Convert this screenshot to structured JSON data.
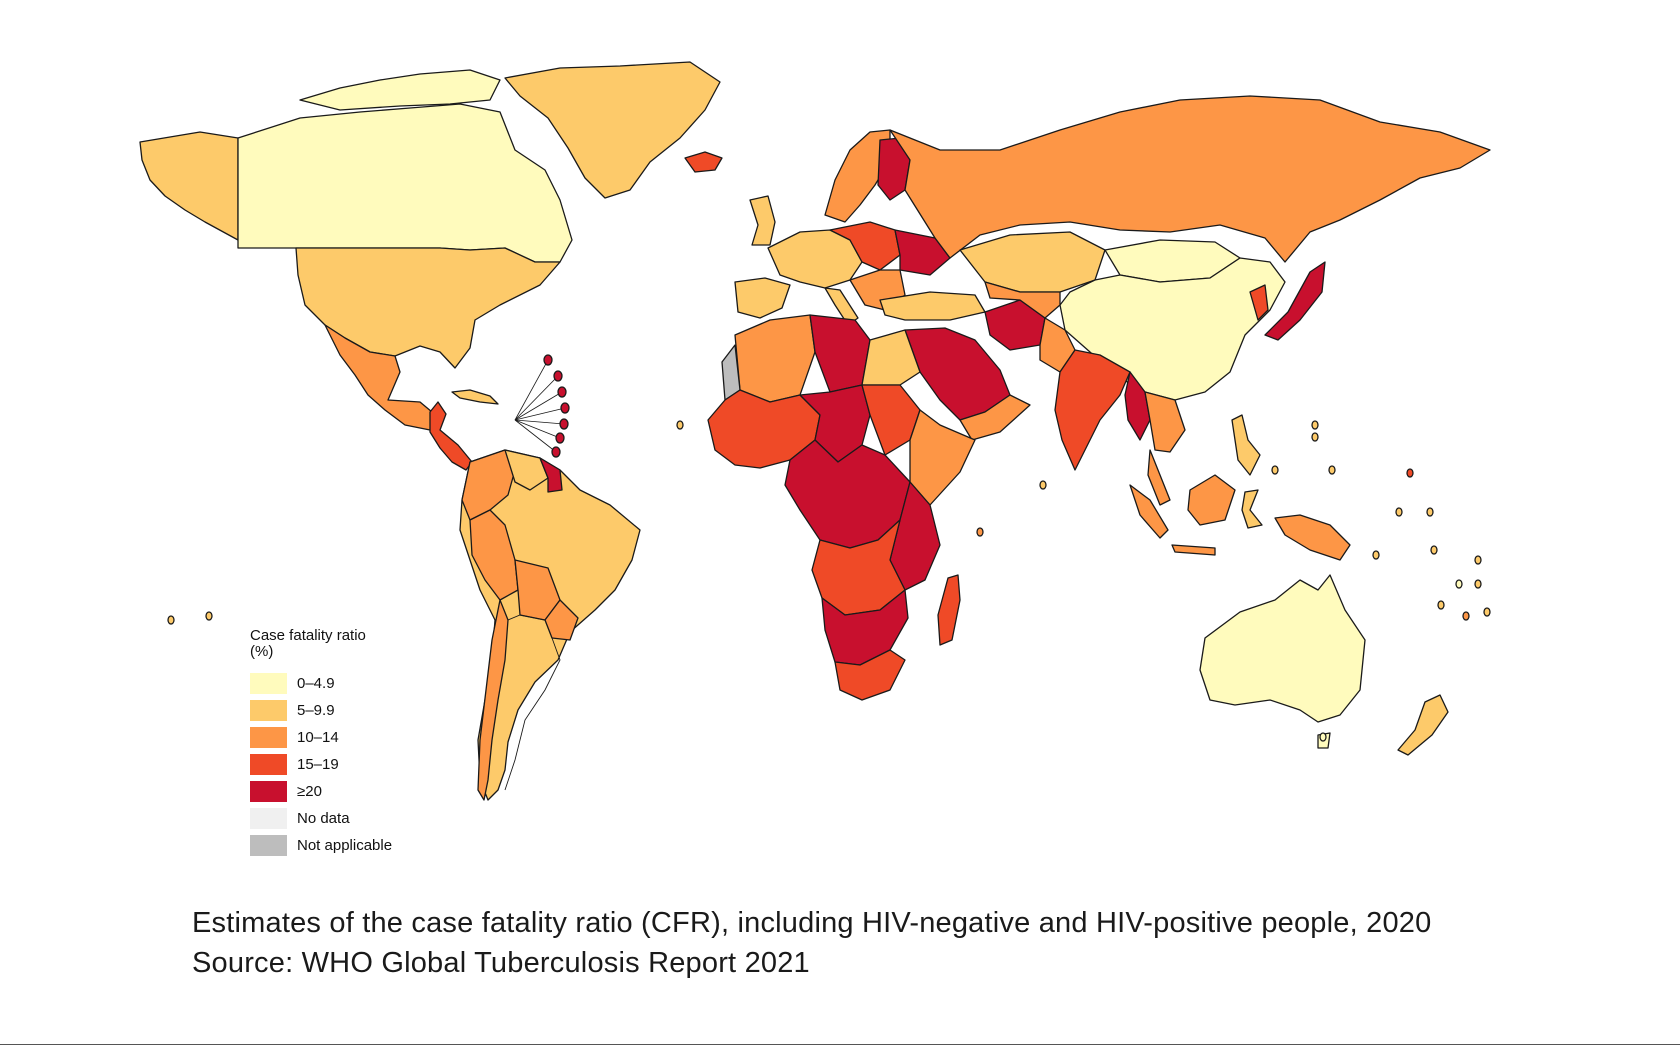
{
  "map": {
    "colors": {
      "c0": "#fffbbd",
      "c1": "#fdca6a",
      "c2": "#fd9646",
      "c3": "#ef4a27",
      "c4": "#c8102e",
      "no_data": "#f0f0f0",
      "na": "#bdbdbd"
    }
  },
  "legend": {
    "title": "Case fatality ratio",
    "unit": "(%)",
    "items": [
      {
        "label": "0–4.9",
        "color": "#fffbbd"
      },
      {
        "label": "5–9.9",
        "color": "#fdca6a"
      },
      {
        "label": "10–14",
        "color": "#fd9646"
      },
      {
        "label": "15–19",
        "color": "#ef4a27"
      },
      {
        "label": "≥20",
        "color": "#c8102e"
      },
      {
        "label": "No data",
        "color": "#f0f0f0"
      },
      {
        "label": "Not applicable",
        "color": "#bdbdbd"
      }
    ]
  },
  "caption": {
    "line1": "Estimates of the case fatality ratio (CFR), including HIV-negative and HIV-positive people, 2020",
    "line2": "Source: WHO Global Tuberculosis Report 2021"
  }
}
